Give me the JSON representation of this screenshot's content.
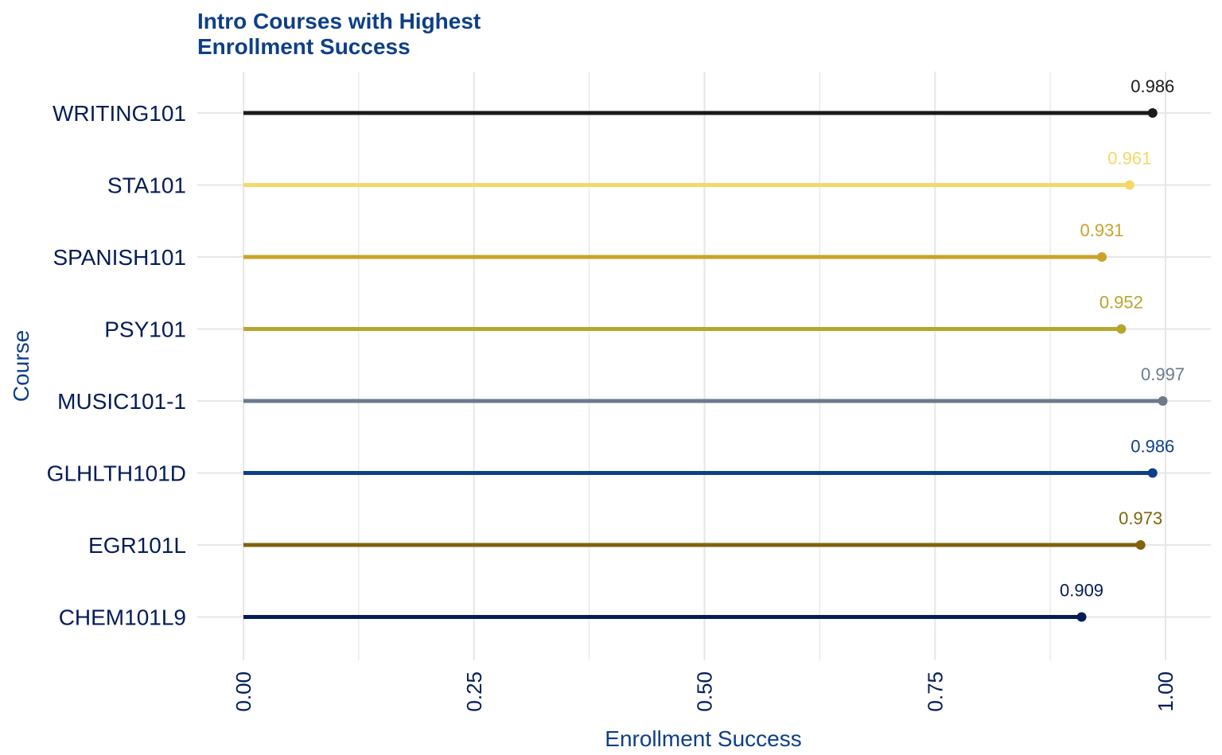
{
  "chart_data": {
    "type": "lollipop",
    "title_lines": [
      "Intro Courses with Highest",
      "Enrollment Success"
    ],
    "xlabel": "Enrollment Success",
    "ylabel": "Course",
    "xlim": [
      0,
      1
    ],
    "x_major_ticks": [
      0,
      0.25,
      0.5,
      0.75,
      1.0
    ],
    "x_tick_labels": [
      "0.00",
      "0.25",
      "0.50",
      "0.75",
      "1.00"
    ],
    "x_minor_ticks": [
      0.125,
      0.375,
      0.625,
      0.875
    ],
    "grid": true,
    "legend": "none",
    "categories": [
      "WRITING101",
      "STA101",
      "SPANISH101",
      "PSY101",
      "MUSIC101-1",
      "GLHLTH101D",
      "EGR101L",
      "CHEM101L9"
    ],
    "values": [
      0.986,
      0.961,
      0.931,
      0.952,
      0.997,
      0.986,
      0.973,
      0.909
    ],
    "labels": [
      "0.986",
      "0.961",
      "0.931",
      "0.952",
      "0.997",
      "0.986",
      "0.973",
      "0.909"
    ],
    "colors": [
      "#1a1a1a",
      "#f5d867",
      "#c9a22a",
      "#b6a62f",
      "#6b7b8c",
      "#0e3f88",
      "#7f630d",
      "#041c57"
    ]
  },
  "colors": {
    "title": "#0e3f88",
    "tick_text": "#041c57",
    "axis_label": "#0e3f88",
    "grid": "#e6e6e6"
  }
}
